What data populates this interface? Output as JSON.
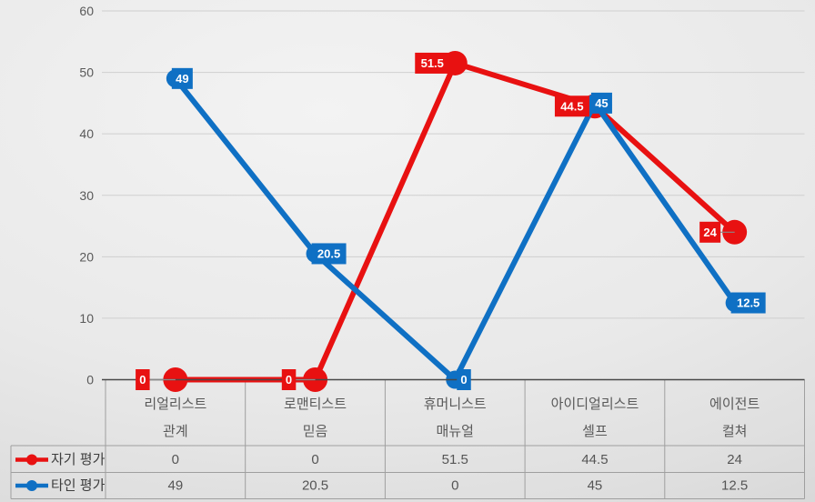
{
  "chart_data": {
    "type": "line",
    "title": "",
    "categories": [
      "리얼리스트",
      "로맨티스트",
      "휴머니스트",
      "아이디얼리스트",
      "에이전트"
    ],
    "category_sublabels": [
      "관계",
      "믿음",
      "매뉴얼",
      "셀프",
      "컬쳐"
    ],
    "series": [
      {
        "name": "자기 평가",
        "color": "#e81111",
        "values": [
          0,
          0,
          51.5,
          44.5,
          24
        ],
        "data_labels": [
          "0",
          "0",
          "51.5",
          "44.5",
          "24"
        ]
      },
      {
        "name": "타인 평가",
        "color": "#0f70c4",
        "values": [
          49,
          20.5,
          0,
          45,
          12.5
        ],
        "data_labels": [
          "49",
          "20.5",
          "0",
          "45",
          "12.5"
        ]
      }
    ],
    "ylim": [
      0,
      60
    ],
    "yticks": [
      "0",
      "10",
      "20",
      "30",
      "40",
      "50",
      "60"
    ],
    "grid": true,
    "data_labels": true,
    "legend_position": "data-table-left",
    "data_table": {
      "rows": [
        {
          "legend": "자기 평가",
          "values": [
            "0",
            "0",
            "51.5",
            "44.5",
            "24"
          ]
        },
        {
          "legend": "타인 평가",
          "values": [
            "49",
            "20.5",
            "0",
            "45",
            "12.5"
          ]
        }
      ]
    }
  },
  "colors": {
    "series_self": "#e81111",
    "series_others": "#0f70c4",
    "grid_line": "#cfcfcf",
    "axis_line": "#484848",
    "table_border": "#9f9f9f",
    "tick_text": "#595959",
    "cell_text": "#555555",
    "legend_text": "#3d3d3d",
    "label_text": "#ffffff",
    "leader_line": "#8a8a8a"
  }
}
